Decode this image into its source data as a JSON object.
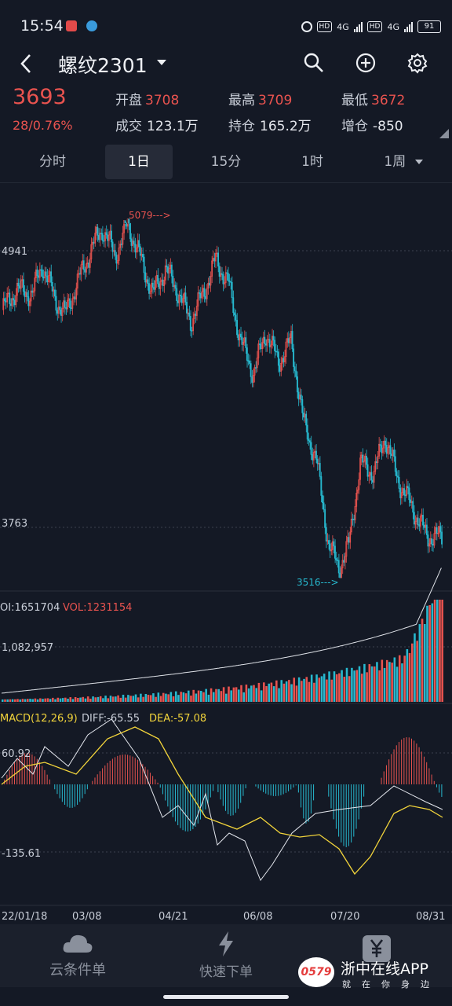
{
  "status_bar": {
    "time": "15:54",
    "net1": "4G",
    "net2": "4G",
    "hd1": "HD",
    "hd2": "HD",
    "battery": "91"
  },
  "header": {
    "title": "螺纹2301"
  },
  "quote": {
    "price": "3693",
    "change": "28/0.76%",
    "open_label": "开盘",
    "open": "3708",
    "high_label": "最高",
    "high": "3709",
    "low_label": "最低",
    "low": "3672",
    "volume_label": "成交",
    "volume": "123.1万",
    "oi_label": "持仓",
    "oi": "165.2万",
    "oi_change_label": "增仓",
    "oi_change": "-850"
  },
  "tabs": [
    {
      "label": "分时"
    },
    {
      "label": "1日"
    },
    {
      "label": "15分"
    },
    {
      "label": "1时"
    },
    {
      "label": "1周"
    }
  ],
  "colors": {
    "up": "#e9534f",
    "down": "#27b9cf",
    "ma": "#e4e7ee",
    "dea": "#f2d43b",
    "bg": "#141925"
  },
  "kline": {
    "axis_labels": {
      "top": "4941",
      "bottom": "3763"
    },
    "high_marker": "5079--->",
    "low_marker": "3516--->"
  },
  "volume_panel": {
    "oi_label": "OI:1651704",
    "vol_label": "VOL:1231154",
    "axis_label": "1,082,957"
  },
  "macd_panel": {
    "label": "MACD(12,26,9)",
    "diff": "DIFF:-65.55",
    "dea": "DEA:-57.08",
    "axis_top": "60.92",
    "axis_bottom": "-135.61"
  },
  "dates": [
    "22/01/18",
    "03/08",
    "04/21",
    "06/08",
    "07/20",
    "08/31"
  ],
  "nav": {
    "items": [
      {
        "label": "云条件单",
        "icon": "cloud-icon"
      },
      {
        "label": "快速下单",
        "icon": "lightning-icon"
      },
      {
        "label": "",
        "icon": "yen-icon"
      }
    ]
  },
  "watermark": {
    "logo_text": "0579",
    "name": "浙中在线APP",
    "slogan": "就在你身边"
  }
}
